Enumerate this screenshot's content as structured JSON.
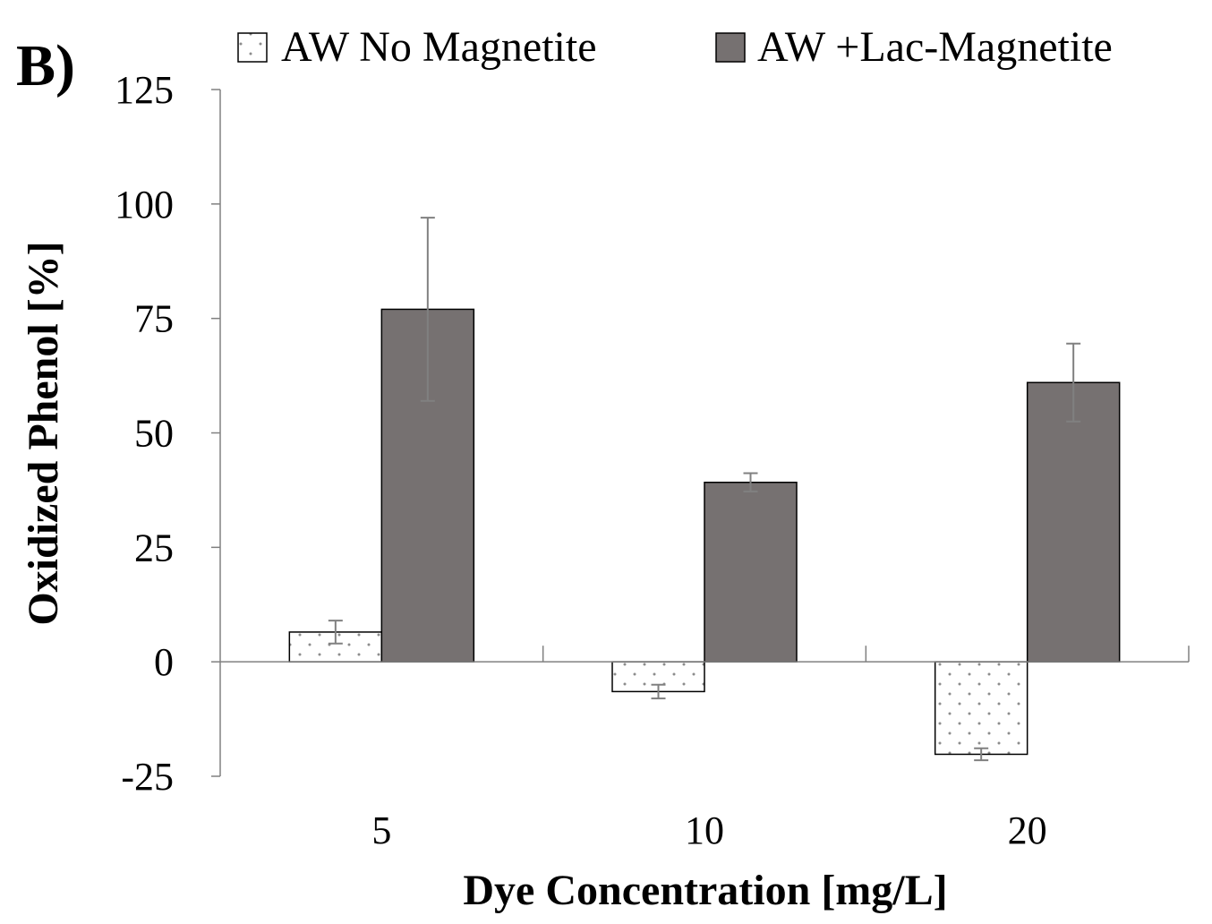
{
  "panel_label": "B)",
  "colors": {
    "series1_fill": "#ffffff",
    "series1_dots": "#8c8c8c",
    "series2_fill": "#767171",
    "axis": "#808080",
    "bar_stroke": "#000000",
    "text": "#000000"
  },
  "chart_data": {
    "type": "bar",
    "xlabel": "Dye Concentration [mg/L]",
    "ylabel": "Oxidized Phenol [%]",
    "categories": [
      "5",
      "10",
      "20"
    ],
    "ylim": [
      -25,
      125
    ],
    "yticks": [
      -25,
      0,
      25,
      50,
      75,
      100,
      125
    ],
    "ytick_labels": [
      "-25",
      "0",
      "25",
      "50",
      "75",
      "100",
      "125"
    ],
    "legend_position": "top",
    "grid": false,
    "series": [
      {
        "name": "AW No Magnetite",
        "values": [
          6.5,
          -6.5,
          -20.2
        ],
        "errors": [
          2.5,
          1.5,
          1.3
        ],
        "pattern": "dotted"
      },
      {
        "name": "AW +Lac-Magnetite",
        "values": [
          77,
          39.2,
          61
        ],
        "errors": [
          20,
          2.0,
          8.5
        ],
        "pattern": "solid"
      }
    ]
  }
}
